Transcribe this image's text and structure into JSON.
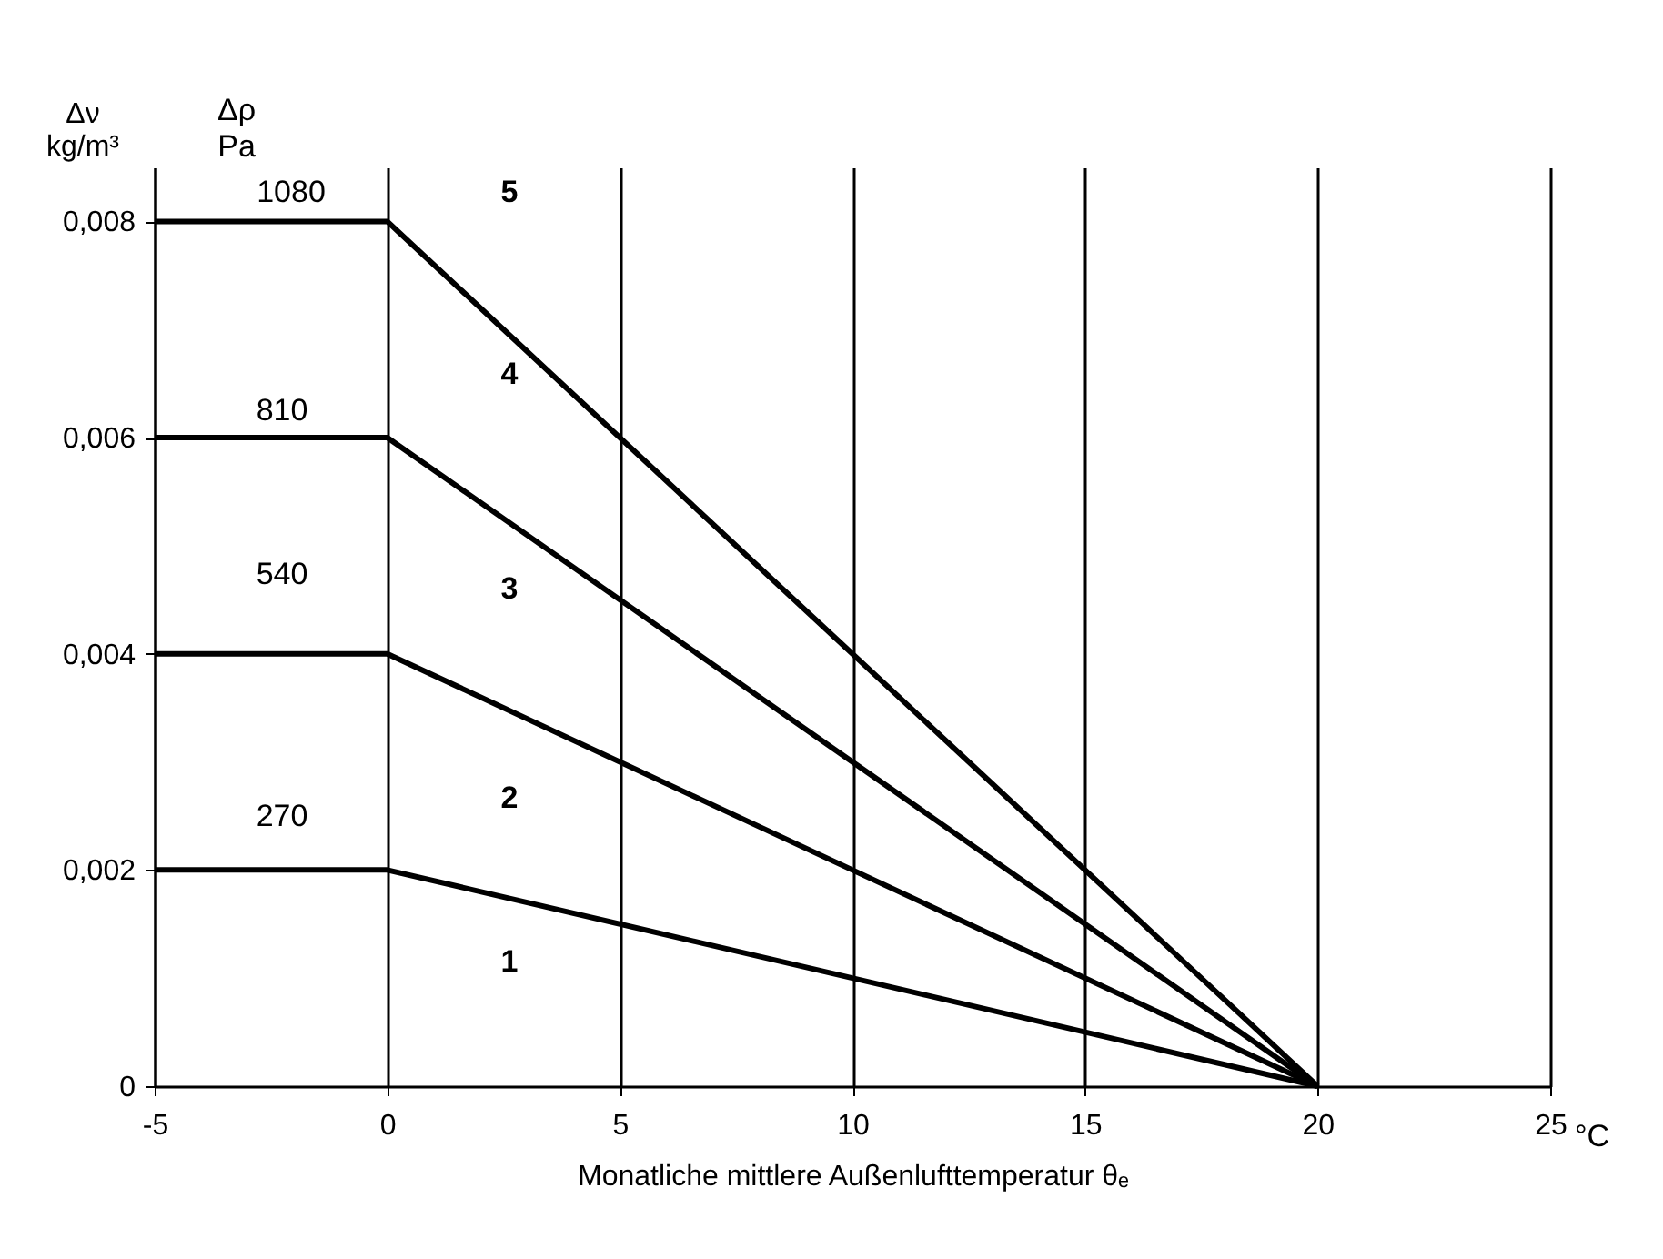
{
  "chart_data": {
    "type": "line",
    "xlabel": "Monatliche mittlere Außenlufttemperatur θₑ",
    "ylabel": "Δν kg/m³",
    "x": [
      -5,
      0,
      20
    ],
    "series": [
      {
        "color": "#000000",
        "values": [
          0.002,
          0.002,
          0
        ]
      },
      {
        "color": "#000000",
        "values": [
          0.004,
          0.004,
          0
        ]
      },
      {
        "color": "#000000",
        "values": [
          0.006,
          0.006,
          0
        ]
      },
      {
        "color": "#000000",
        "values": [
          0.008,
          0.008,
          0
        ]
      }
    ],
    "xlim": [
      -5,
      25
    ],
    "xticks": [
      -5,
      0,
      5,
      10,
      15,
      20,
      25
    ],
    "ylim": [
      0,
      0.0085
    ],
    "yticks": [
      0,
      {
        "value": 0.002,
        "label": "0,002"
      },
      {
        "value": 0.004,
        "label": "0,004"
      },
      {
        "value": 0.006,
        "label": "0,006"
      },
      {
        "value": 0.008,
        "label": "0,008"
      }
    ],
    "grid": "x",
    "line_style": "solid",
    "marker": "none",
    "annotations": [
      "Δρ Pa",
      "270",
      "540",
      "810",
      "1080",
      "1",
      "2",
      "3",
      "4",
      "5",
      "°C"
    ]
  }
}
